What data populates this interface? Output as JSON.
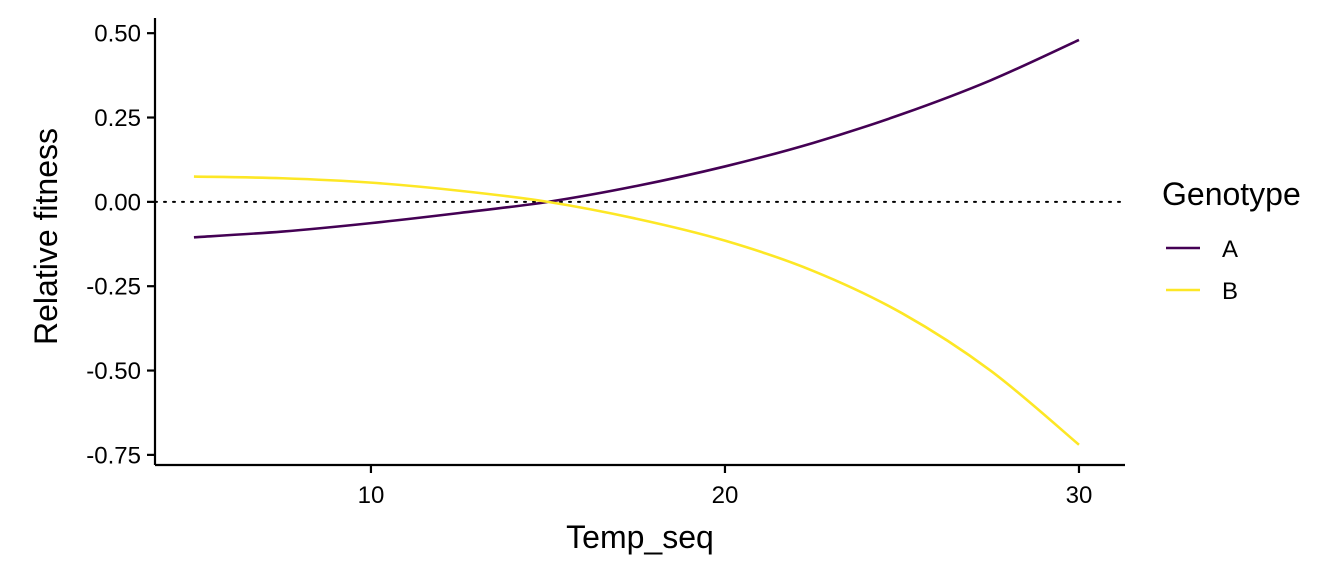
{
  "chart_data": {
    "type": "line",
    "xlabel": "Temp_seq",
    "ylabel": "Relative fitness",
    "xlim": [
      3.9,
      31.3
    ],
    "ylim": [
      -0.78,
      0.545
    ],
    "x_ticks": [
      10,
      20,
      30
    ],
    "x_tick_labels": [
      "10",
      "20",
      "30"
    ],
    "y_ticks": [
      0.5,
      0.25,
      0.0,
      -0.25,
      -0.5,
      -0.75
    ],
    "y_tick_labels": [
      "0.50",
      "0.25",
      "0.00",
      "-0.25",
      "-0.50",
      "-0.75"
    ],
    "reference_line": {
      "y": 0,
      "style": "dotted",
      "color": "#000000"
    },
    "grid": false,
    "legend": {
      "title": "Genotype",
      "position": "right"
    },
    "x": [
      5,
      7.5,
      10,
      12.5,
      15,
      17.5,
      20,
      22.5,
      25,
      27.5,
      30
    ],
    "series": [
      {
        "name": "A",
        "color": "#440154",
        "values": [
          -0.105,
          -0.088,
          -0.063,
          -0.033,
          0.0,
          0.047,
          0.105,
          0.175,
          0.26,
          0.36,
          0.48
        ]
      },
      {
        "name": "B",
        "color": "#FDE725",
        "values": [
          0.075,
          0.07,
          0.057,
          0.033,
          0.0,
          -0.05,
          -0.115,
          -0.205,
          -0.33,
          -0.5,
          -0.72
        ]
      }
    ]
  }
}
